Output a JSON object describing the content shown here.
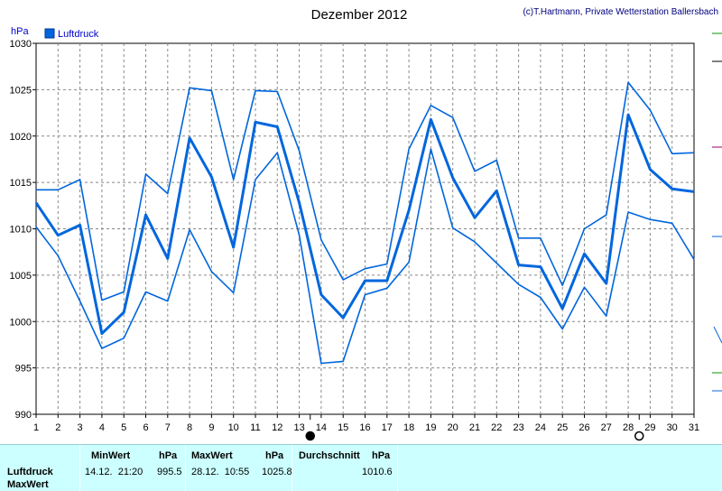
{
  "header": {
    "title": "Dezember 2012",
    "copyright": "(c)T.Hartmann, Private Wetterstation Ballersbach"
  },
  "legend": {
    "label": "Luftdruck",
    "color": "#0066dd"
  },
  "chart_data": {
    "type": "line",
    "title": "Dezember 2012",
    "ylabel": "hPa",
    "ylim": [
      990,
      1030
    ],
    "yticks": [
      "1030",
      "1025",
      "1020",
      "1015",
      "1010",
      "1005",
      "1000",
      "995",
      "990"
    ],
    "x": [
      "1",
      "2",
      "3",
      "4",
      "5",
      "6",
      "7",
      "8",
      "9",
      "10",
      "11",
      "12",
      "13",
      "14",
      "15",
      "16",
      "17",
      "18",
      "19",
      "20",
      "21",
      "22",
      "23",
      "24",
      "25",
      "26",
      "27",
      "28",
      "29",
      "30",
      "31"
    ],
    "grid": true,
    "legend_position": "top-left",
    "series": [
      {
        "name": "Luftdruck",
        "values": [
          1012.8,
          1009.3,
          1010.4,
          998.7,
          1001.0,
          1011.5,
          1006.8,
          1019.8,
          1015.6,
          1008.0,
          1021.5,
          1021.0,
          1012.8,
          1002.9,
          1000.4,
          1004.4,
          1004.4,
          1012.0,
          1021.8,
          1015.5,
          1011.2,
          1014.1,
          1006.1,
          1005.9,
          1001.4,
          1007.3,
          1004.1,
          1022.3,
          1016.4,
          1014.3,
          1014.0
        ]
      },
      {
        "values": [
          1014.2,
          1014.2,
          1015.3,
          1002.3,
          1003.2,
          1015.9,
          1013.8,
          1025.2,
          1024.9,
          1015.3,
          1024.9,
          1024.8,
          1018.4,
          1008.8,
          1004.5,
          1005.7,
          1006.2,
          1018.6,
          1023.3,
          1022.0,
          1016.2,
          1017.4,
          1009.0,
          1009.0,
          1003.9,
          1010.0,
          1011.5,
          1025.8,
          1022.8,
          1018.1,
          1018.2
        ]
      },
      {
        "values": [
          1010.2,
          1007.1,
          1002.2,
          997.1,
          998.2,
          1003.2,
          1002.2,
          1009.9,
          1005.4,
          1003.1,
          1015.3,
          1018.2,
          1009.3,
          995.5,
          995.7,
          1002.9,
          1003.6,
          1006.4,
          1018.6,
          1010.1,
          1008.6,
          1006.3,
          1004.0,
          1002.6,
          999.2,
          1003.7,
          1000.6,
          1011.8,
          1011.0,
          1010.6,
          1006.7
        ]
      }
    ],
    "moon_phases": [
      {
        "type": "new-moon",
        "day": 13.5
      },
      {
        "type": "full-moon",
        "day": 28.5
      }
    ]
  },
  "stats": {
    "rows": [
      "Luftdruck",
      "MaxWert"
    ],
    "min_header": "MinWert",
    "max_header": "MaxWert",
    "avg_header": "Durchschnitt",
    "unit": "hPa",
    "min_time": "14.12.  21:20",
    "min_value": "995.5",
    "max_time": "28.12.  10:55",
    "max_value": "1025.8",
    "avg_value": "1010.6"
  }
}
